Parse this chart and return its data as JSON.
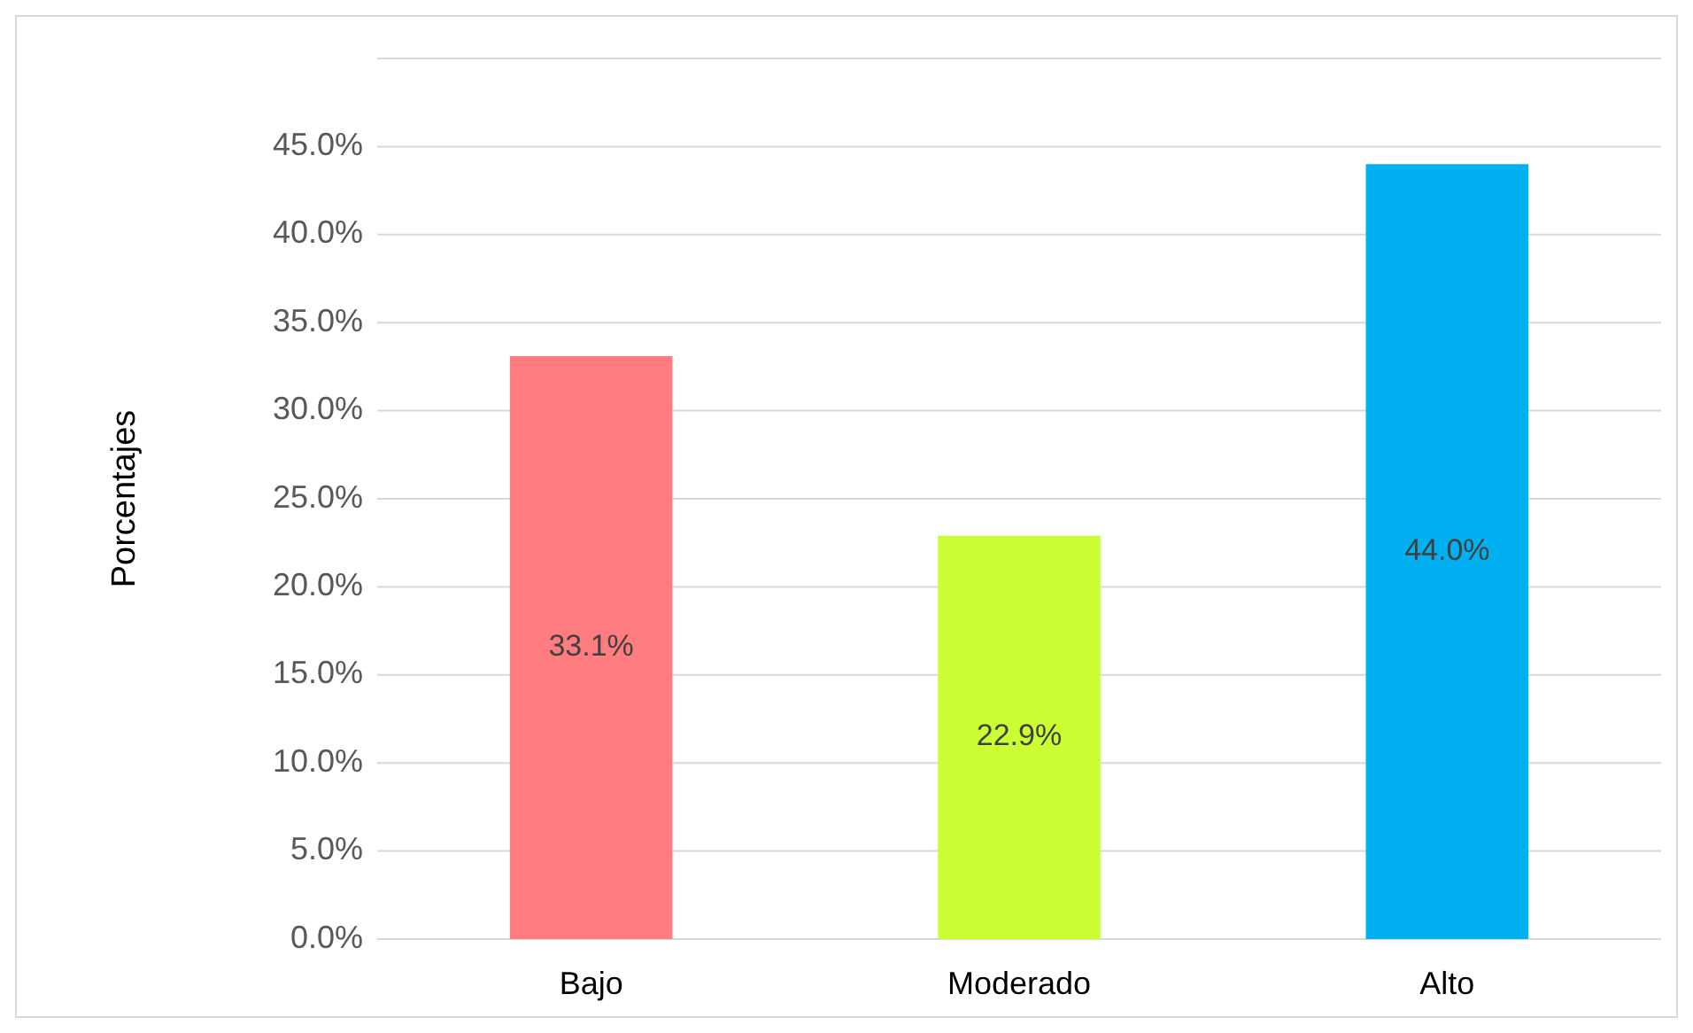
{
  "chart_data": {
    "type": "bar",
    "ylabel": "Porcentajes",
    "categories": [
      "Bajo",
      "Moderado",
      "Alto"
    ],
    "values": [
      33.1,
      22.9,
      44.0
    ],
    "colors": [
      "#ff7c80",
      "#ccff33",
      "#00b0f0"
    ],
    "value_labels": [
      "33.1%",
      "22.9%",
      "44.0%"
    ],
    "ylim": [
      0,
      50
    ],
    "yticks": [
      {
        "value": 0,
        "label": "0.0%"
      },
      {
        "value": 5,
        "label": "5.0%"
      },
      {
        "value": 10,
        "label": "10.0%"
      },
      {
        "value": 15,
        "label": "15.0%"
      },
      {
        "value": 20,
        "label": "20.0%"
      },
      {
        "value": 25,
        "label": "25.0%"
      },
      {
        "value": 30,
        "label": "30.0%"
      },
      {
        "value": 35,
        "label": "35.0%"
      },
      {
        "value": 40,
        "label": "40.0%"
      },
      {
        "value": 45,
        "label": "45.0%"
      },
      {
        "value": 50,
        "label": null
      }
    ],
    "grid": true
  }
}
